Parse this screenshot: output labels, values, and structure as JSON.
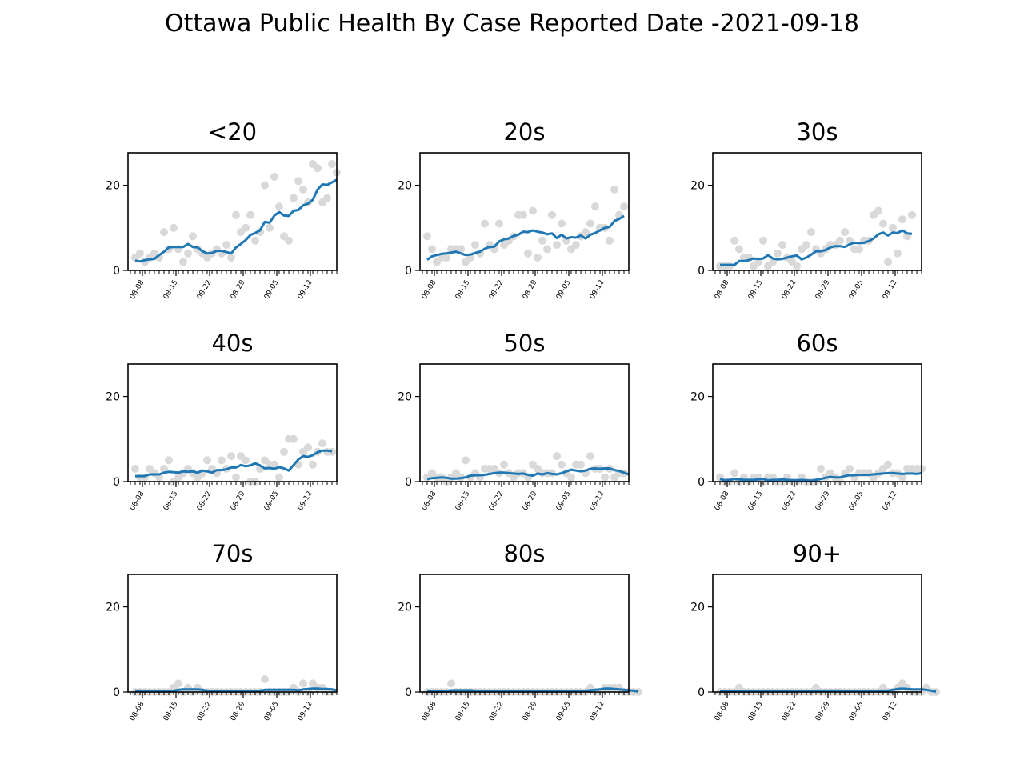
{
  "figure": {
    "title": "Ottawa Public Health By Case Reported Date -2021-09-18"
  },
  "style": {
    "line_color": "#1f77b4",
    "point_color": "#d9d9d9",
    "axes_color": "#000000"
  },
  "chart_data": [
    {
      "type": "scatter",
      "title": "<20",
      "x_start": "2021-08-05",
      "x_end": "2021-09-17",
      "ylim": [
        0,
        25
      ],
      "yticks": [
        0,
        20
      ],
      "xticks": [
        "08-08",
        "08-15",
        "08-22",
        "08-29",
        "09-05",
        "09-12"
      ],
      "grid": false,
      "series": [
        {
          "kind": "points",
          "values": [
            3,
            4,
            2,
            3,
            4,
            3,
            9,
            5,
            10,
            5,
            2,
            4,
            8,
            5,
            4,
            3,
            4,
            5,
            4,
            6,
            3,
            13,
            9,
            10,
            13,
            7,
            9,
            20,
            10,
            22,
            15,
            8,
            7,
            17,
            21,
            19,
            16,
            25,
            24,
            16,
            17,
            25,
            23
          ]
        },
        {
          "kind": "line",
          "values": [
            2.3,
            2.1,
            2.4,
            2.6,
            2.7,
            3.6,
            4.4,
            5.4,
            5.5,
            5.5,
            5.5,
            6.2,
            5.5,
            5.4,
            4.5,
            4.0,
            4.1,
            4.6,
            4.6,
            4.3,
            4.0,
            5.4,
            6.2,
            7.1,
            8.3,
            8.8,
            9.4,
            11.4,
            11.2,
            12.9,
            13.7,
            12.9,
            12.8,
            14.0,
            14.2,
            15.3,
            15.7,
            16.6,
            19.0,
            20.2,
            20.1,
            20.7,
            21.3
          ]
        }
      ]
    },
    {
      "type": "scatter",
      "title": "20s",
      "x_start": "2021-08-05",
      "x_end": "2021-09-17",
      "ylim": [
        0,
        25
      ],
      "yticks": [
        0,
        20
      ],
      "xticks": [
        "08-08",
        "08-15",
        "08-22",
        "08-29",
        "09-05",
        "09-12"
      ],
      "grid": false,
      "series": [
        {
          "kind": "points",
          "values": [
            8,
            5,
            2,
            3,
            3,
            5,
            5,
            5,
            2,
            3,
            6,
            4,
            11,
            6,
            5,
            11,
            6,
            7,
            8,
            13,
            13,
            4,
            14,
            3,
            7,
            5,
            13,
            6,
            11,
            7,
            5,
            6,
            8,
            9,
            11,
            15,
            10,
            10,
            7,
            19,
            13,
            15
          ]
        },
        {
          "kind": "line",
          "values": [
            2.5,
            3.3,
            3.6,
            3.9,
            4.0,
            4.2,
            4.4,
            4.0,
            3.6,
            3.7,
            4.1,
            4.4,
            5.1,
            5.5,
            5.6,
            6.8,
            7.3,
            7.5,
            8.1,
            8.4,
            9.1,
            9.0,
            9.4,
            9.1,
            8.9,
            8.5,
            8.7,
            7.6,
            8.4,
            7.5,
            7.8,
            7.7,
            8.2,
            7.5,
            8.4,
            8.8,
            9.4,
            10.0,
            10.2,
            11.6,
            12.1,
            12.8
          ]
        }
      ]
    },
    {
      "type": "scatter",
      "title": "30s",
      "x_start": "2021-08-05",
      "x_end": "2021-09-17",
      "ylim": [
        0,
        25
      ],
      "yticks": [
        0,
        20
      ],
      "xticks": [
        "08-08",
        "08-15",
        "08-22",
        "08-29",
        "09-05",
        "09-12"
      ],
      "grid": false,
      "series": [
        {
          "kind": "points",
          "values": [
            1,
            1,
            1,
            7,
            5,
            3,
            3,
            1,
            2,
            7,
            1,
            2,
            4,
            6,
            3,
            2,
            1,
            5,
            6,
            9,
            5,
            4,
            5,
            6,
            6,
            7,
            9,
            7,
            5,
            5,
            7,
            7,
            13,
            14,
            11,
            2,
            10,
            4,
            12,
            8,
            13
          ]
        },
        {
          "kind": "line",
          "values": [
            1.3,
            1.3,
            1.3,
            1.3,
            2.2,
            2.2,
            2.4,
            2.8,
            2.7,
            2.8,
            3.6,
            2.8,
            2.6,
            2.7,
            3.0,
            3.3,
            3.5,
            2.6,
            3.0,
            3.7,
            4.5,
            4.5,
            4.8,
            5.4,
            5.7,
            5.7,
            5.5,
            6.1,
            6.5,
            6.4,
            6.5,
            6.9,
            7.5,
            8.5,
            8.9,
            8.2,
            8.9,
            8.8,
            9.4,
            8.7,
            8.6
          ]
        }
      ]
    },
    {
      "type": "scatter",
      "title": "40s",
      "x_start": "2021-08-05",
      "x_end": "2021-09-17",
      "ylim": [
        0,
        25
      ],
      "yticks": [
        0,
        20
      ],
      "xticks": [
        "08-08",
        "08-15",
        "08-22",
        "08-29",
        "09-05",
        "09-12"
      ],
      "grid": false,
      "series": [
        {
          "kind": "points",
          "values": [
            3,
            1,
            1,
            3,
            2,
            1,
            3,
            5,
            0,
            1,
            2,
            3,
            2,
            1,
            2,
            5,
            3,
            2,
            5,
            3,
            6,
            1,
            6,
            5,
            0,
            0,
            3,
            5,
            4,
            4,
            1,
            7,
            10,
            10,
            4,
            7,
            8,
            4,
            7,
            9,
            7,
            7
          ]
        },
        {
          "kind": "line",
          "values": [
            1.3,
            1.3,
            1.3,
            1.7,
            1.7,
            1.7,
            2.1,
            2.3,
            2.2,
            2.1,
            2.4,
            2.3,
            2.4,
            2.1,
            2.6,
            2.4,
            2.1,
            2.7,
            2.7,
            2.9,
            3.3,
            3.3,
            3.9,
            3.6,
            3.8,
            4.3,
            3.8,
            3.1,
            3.2,
            3.0,
            3.4,
            3.1,
            2.6,
            3.9,
            5.2,
            6.0,
            5.8,
            6.2,
            6.9,
            7.3,
            7.3,
            7.1
          ]
        }
      ]
    },
    {
      "type": "scatter",
      "title": "50s",
      "x_start": "2021-08-05",
      "x_end": "2021-09-17",
      "ylim": [
        0,
        25
      ],
      "yticks": [
        0,
        20
      ],
      "xticks": [
        "08-08",
        "08-15",
        "08-22",
        "08-29",
        "09-05",
        "09-12"
      ],
      "grid": false,
      "series": [
        {
          "kind": "points",
          "values": [
            1,
            2,
            1,
            1,
            0,
            1,
            2,
            1,
            5,
            1,
            2,
            1,
            3,
            3,
            3,
            2,
            4,
            2,
            1,
            2,
            2,
            1,
            4,
            3,
            2,
            2,
            2,
            6,
            4,
            2,
            1,
            4,
            4,
            2,
            6,
            3,
            3,
            1,
            3,
            1,
            2,
            2
          ]
        },
        {
          "kind": "line",
          "values": [
            0.6,
            0.8,
            0.9,
            1.0,
            0.9,
            0.7,
            0.7,
            0.8,
            1.0,
            1.4,
            1.5,
            1.5,
            1.6,
            1.8,
            2.0,
            2.1,
            2.1,
            2.0,
            1.9,
            1.8,
            1.9,
            1.6,
            1.4,
            1.9,
            1.7,
            2.0,
            1.8,
            1.7,
            2.0,
            2.4,
            2.8,
            2.6,
            2.4,
            2.6,
            3.0,
            3.1,
            3.0,
            3.1,
            3.1,
            2.7,
            2.5,
            2.1,
            1.7
          ]
        }
      ]
    },
    {
      "type": "scatter",
      "title": "60s",
      "x_start": "2021-08-05",
      "x_end": "2021-09-17",
      "ylim": [
        0,
        25
      ],
      "yticks": [
        0,
        20
      ],
      "xticks": [
        "08-08",
        "08-15",
        "08-22",
        "08-29",
        "09-05",
        "09-12"
      ],
      "grid": false,
      "series": [
        {
          "kind": "points",
          "values": [
            1,
            0,
            0,
            2,
            0,
            1,
            0,
            1,
            1,
            0,
            1,
            1,
            0,
            0,
            1,
            0,
            0,
            1,
            0,
            0,
            0,
            3,
            1,
            2,
            1,
            0,
            2,
            3,
            1,
            2,
            2,
            2,
            1,
            2,
            3,
            4,
            2,
            2,
            1,
            3,
            3,
            3,
            3
          ]
        },
        {
          "kind": "line",
          "values": [
            0.6,
            0.3,
            0.4,
            0.6,
            0.5,
            0.4,
            0.4,
            0.4,
            0.5,
            0.6,
            0.3,
            0.4,
            0.4,
            0.5,
            0.4,
            0.3,
            0.3,
            0.4,
            0.3,
            0.2,
            0.4,
            0.6,
            0.9,
            1.1,
            1.0,
            1.0,
            1.3,
            1.5,
            1.5,
            1.6,
            1.6,
            1.6,
            1.7,
            1.8,
            1.9,
            2.0,
            2.0,
            1.9,
            1.8,
            1.9,
            1.9,
            1.8,
            2.0
          ]
        }
      ]
    },
    {
      "type": "scatter",
      "title": "70s",
      "x_start": "2021-08-05",
      "x_end": "2021-09-17",
      "ylim": [
        0,
        25
      ],
      "yticks": [
        0,
        20
      ],
      "xticks": [
        "08-08",
        "08-15",
        "08-22",
        "08-29",
        "09-05",
        "09-12"
      ],
      "grid": false,
      "series": [
        {
          "kind": "points",
          "values": [
            0,
            0,
            0,
            0,
            0,
            0,
            0,
            0,
            1,
            2,
            0,
            1,
            0,
            1,
            0,
            0,
            0,
            0,
            0,
            0,
            0,
            0,
            0,
            0,
            0,
            0,
            0,
            3,
            0,
            0,
            0,
            0,
            0,
            1,
            0,
            2,
            0,
            2,
            1,
            1,
            0,
            0
          ]
        },
        {
          "kind": "line",
          "values": [
            0.3,
            0.3,
            0.2,
            0.2,
            0.2,
            0.2,
            0.2,
            0.2,
            0.3,
            0.5,
            0.6,
            0.6,
            0.6,
            0.6,
            0.5,
            0.3,
            0.2,
            0.2,
            0.2,
            0.2,
            0.2,
            0.2,
            0.2,
            0.2,
            0.2,
            0.2,
            0.3,
            0.5,
            0.5,
            0.5,
            0.5,
            0.5,
            0.5,
            0.5,
            0.4,
            0.6,
            0.7,
            0.8,
            0.8,
            0.7,
            0.7,
            0.6,
            0.4
          ]
        }
      ]
    },
    {
      "type": "scatter",
      "title": "80s",
      "x_start": "2021-08-05",
      "x_end": "2021-09-17",
      "ylim": [
        0,
        25
      ],
      "yticks": [
        0,
        20
      ],
      "xticks": [
        "08-08",
        "08-15",
        "08-22",
        "08-29",
        "09-05",
        "09-12"
      ],
      "grid": false,
      "series": [
        {
          "kind": "points",
          "values": [
            0,
            0,
            0,
            0,
            0,
            2,
            0,
            0,
            0,
            0,
            0,
            0,
            0,
            0,
            0,
            0,
            0,
            0,
            0,
            0,
            0,
            0,
            0,
            0,
            0,
            0,
            0,
            0,
            0,
            0,
            0,
            0,
            0,
            0,
            1,
            0,
            0,
            1,
            1,
            1,
            1,
            0,
            0,
            0,
            0
          ]
        },
        {
          "kind": "line",
          "values": [
            0.1,
            0.1,
            0.1,
            0.1,
            0.2,
            0.4,
            0.4,
            0.4,
            0.4,
            0.4,
            0.3,
            0.2,
            0.2,
            0.2,
            0.2,
            0.2,
            0.2,
            0.2,
            0.2,
            0.2,
            0.2,
            0.2,
            0.2,
            0.2,
            0.2,
            0.2,
            0.2,
            0.2,
            0.2,
            0.2,
            0.2,
            0.2,
            0.2,
            0.3,
            0.4,
            0.5,
            0.6,
            0.8,
            0.8,
            0.7,
            0.6,
            0.5,
            0.4,
            0.3,
            0.1
          ]
        }
      ]
    },
    {
      "type": "scatter",
      "title": "90+",
      "x_start": "2021-08-05",
      "x_end": "2021-09-17",
      "ylim": [
        0,
        25
      ],
      "yticks": [
        0,
        20
      ],
      "xticks": [
        "08-08",
        "08-15",
        "08-22",
        "08-29",
        "09-05",
        "09-12"
      ],
      "grid": false,
      "series": [
        {
          "kind": "points",
          "values": [
            0,
            0,
            0,
            0,
            1,
            0,
            0,
            0,
            0,
            0,
            0,
            0,
            0,
            0,
            0,
            0,
            0,
            0,
            0,
            0,
            1,
            0,
            0,
            0,
            0,
            0,
            0,
            0,
            0,
            0,
            0,
            0,
            0,
            0,
            1,
            0,
            0,
            1,
            2,
            1,
            0,
            0,
            0,
            1,
            0,
            0
          ]
        },
        {
          "kind": "line",
          "values": [
            0.1,
            0.1,
            0.1,
            0.1,
            0.2,
            0.2,
            0.2,
            0.2,
            0.2,
            0.2,
            0.2,
            0.2,
            0.2,
            0.2,
            0.2,
            0.2,
            0.2,
            0.2,
            0.2,
            0.2,
            0.3,
            0.3,
            0.3,
            0.3,
            0.3,
            0.3,
            0.2,
            0.2,
            0.2,
            0.2,
            0.2,
            0.2,
            0.2,
            0.3,
            0.3,
            0.3,
            0.5,
            0.7,
            0.8,
            0.7,
            0.6,
            0.6,
            0.6,
            0.5,
            0.3,
            0.1
          ]
        }
      ]
    }
  ]
}
